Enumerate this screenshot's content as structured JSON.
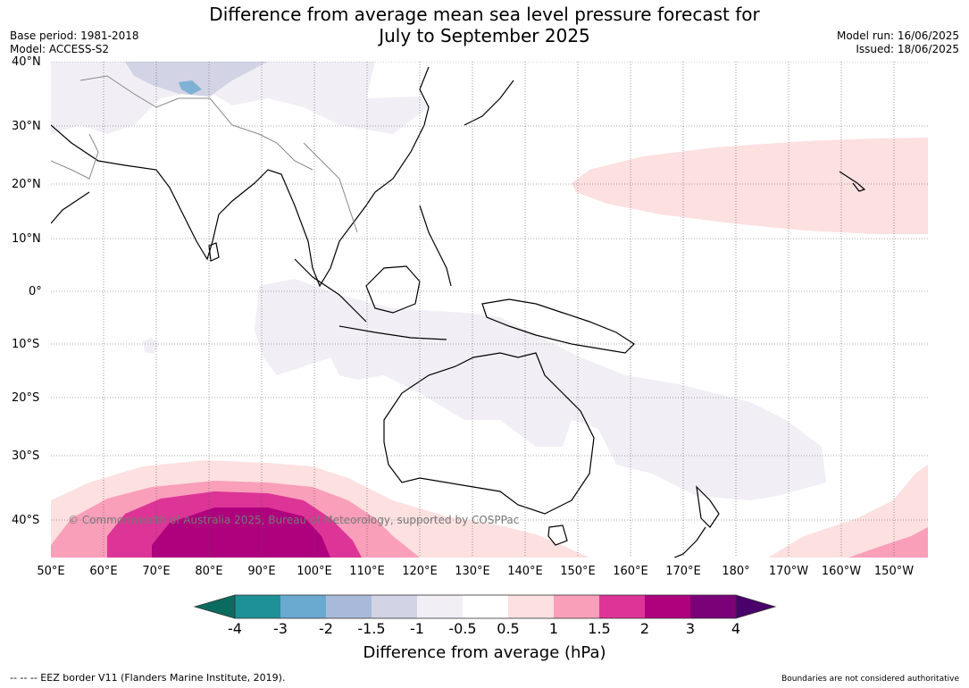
{
  "header": {
    "title_line1": "Difference from average mean sea level pressure forecast for",
    "title_line2": "July to September 2025",
    "base_period": "Base period: 1981-2018",
    "model": "Model: ACCESS-S2",
    "model_run": "Model run: 16/06/2025",
    "issued": "Issued: 18/06/2025"
  },
  "map": {
    "copyright": "© Commonwealth of Australia 2025, Bureau of Meteorology, supported by COSPPac",
    "lat_labels": [
      "40°N",
      "30°N",
      "20°N",
      "10°N",
      "0°",
      "10°S",
      "20°S",
      "30°S",
      "40°S"
    ],
    "lon_labels": [
      "50°E",
      "60°E",
      "70°E",
      "80°E",
      "90°E",
      "100°E",
      "110°E",
      "120°E",
      "130°E",
      "140°E",
      "150°E",
      "160°E",
      "170°E",
      "180°",
      "170°W",
      "160°W",
      "150°W"
    ]
  },
  "colorbar": {
    "ticks": [
      "-4",
      "-3",
      "-2",
      "-1.5",
      "-1",
      "-0.5",
      "0.5",
      "1",
      "1.5",
      "2",
      "3",
      "4"
    ],
    "colors": [
      "#0b6b5e",
      "#1e9196",
      "#6aa9d0",
      "#a9b9d9",
      "#d3d3e6",
      "#f1eef5",
      "#ffffff",
      "#fde0e0",
      "#f99fba",
      "#dd3497",
      "#ae017e",
      "#7a0177",
      "#4a006a"
    ],
    "title": "Difference from average (hPa)"
  },
  "footer": {
    "eez": "--  --  -- EEZ border V11 (Flanders Marine Institute, 2019).",
    "boundaries": "Boundaries are not considered authoritative"
  }
}
